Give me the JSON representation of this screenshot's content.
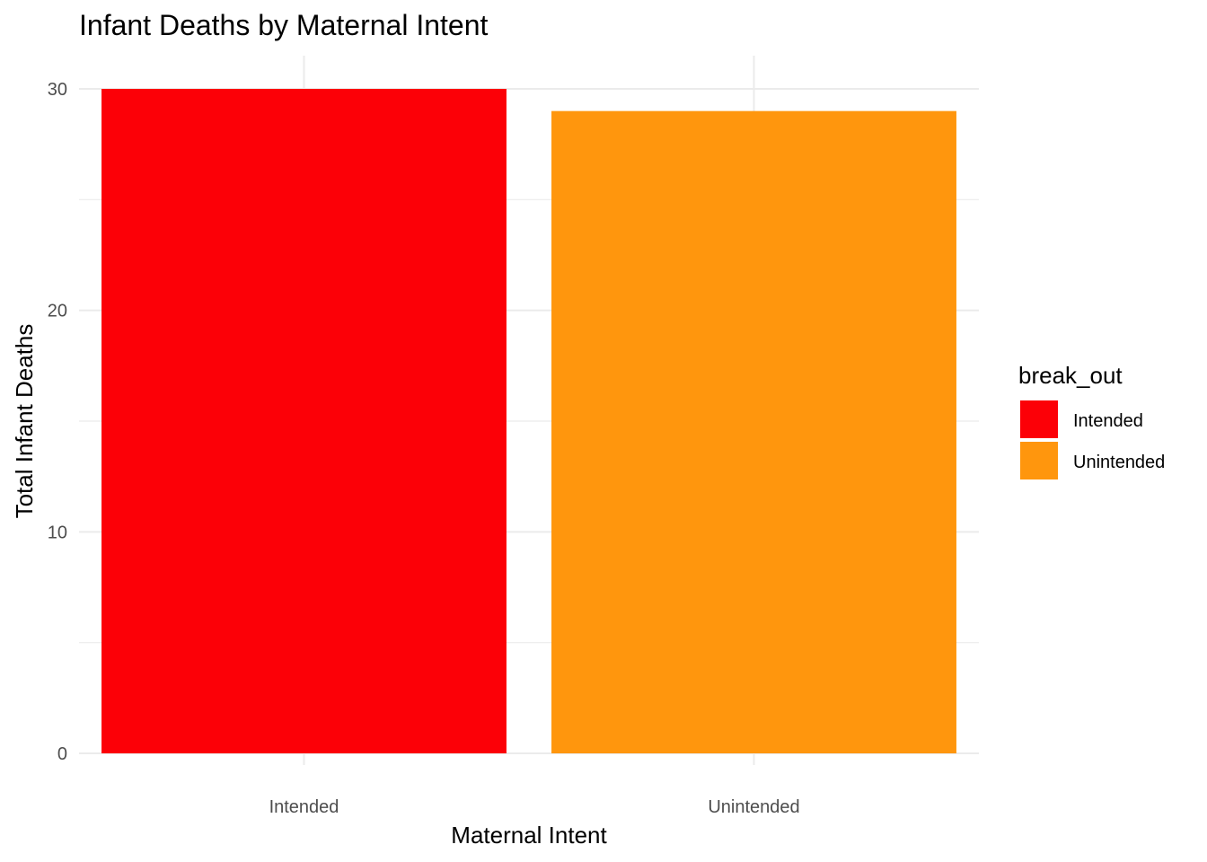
{
  "chart_data": {
    "type": "bar",
    "title": "Infant Deaths by Maternal Intent",
    "xlabel": "Maternal Intent",
    "ylabel": "Total Infant Deaths",
    "categories": [
      "Intended",
      "Unintended"
    ],
    "values": [
      30,
      29
    ],
    "colors": [
      "#FC0007",
      "#FF960D"
    ],
    "ylim": [
      0,
      31
    ],
    "yticks": [
      0,
      10,
      20,
      30
    ],
    "grid": true,
    "legend": {
      "title": "break_out",
      "placement": "right",
      "entries": [
        {
          "label": "Intended",
          "color": "#FC0007"
        },
        {
          "label": "Unintended",
          "color": "#FF960D"
        }
      ]
    }
  }
}
